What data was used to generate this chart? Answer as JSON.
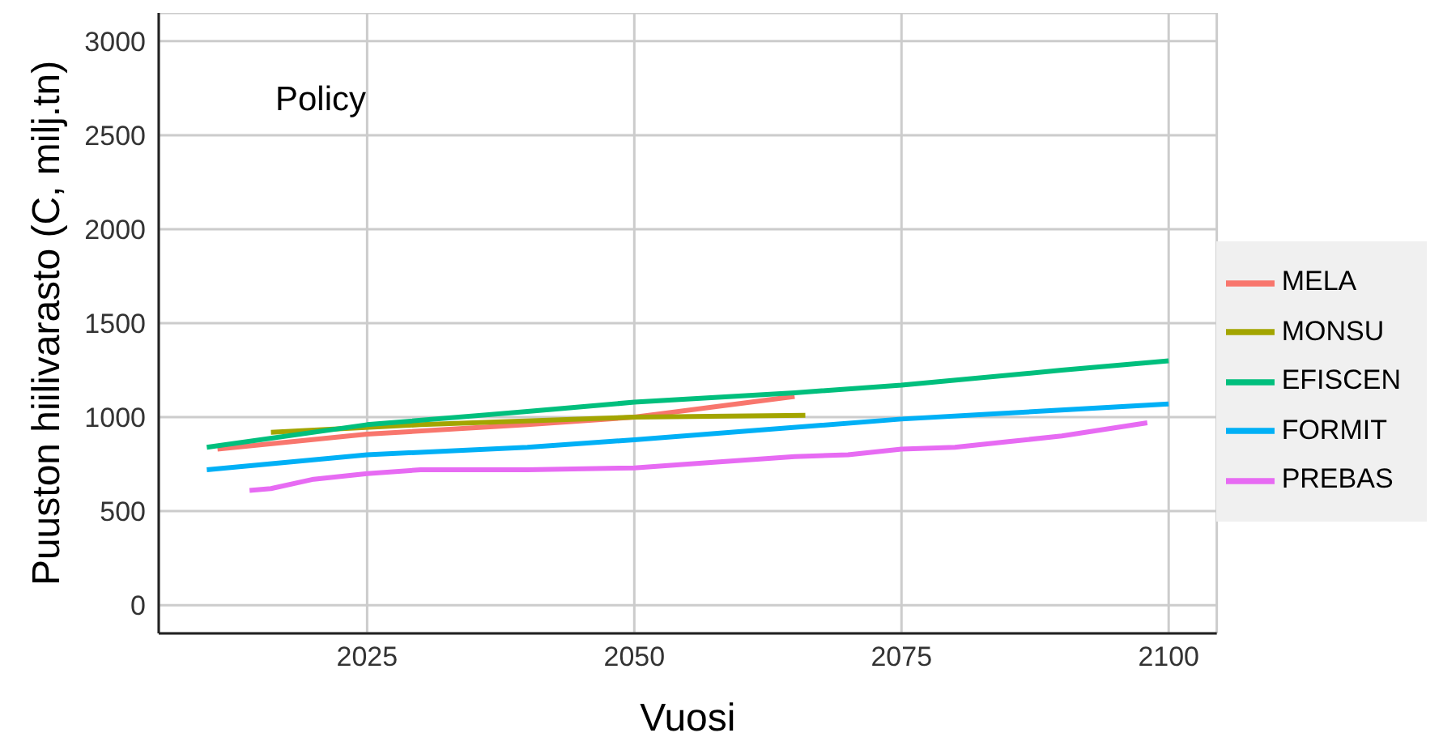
{
  "chart_data": {
    "type": "line",
    "xlabel": "Vuosi",
    "ylabel": "Puuston hiilivarasto (C, milj.tn)",
    "annotations": [
      "Policy"
    ],
    "xlim": [
      2005.5,
      2104.5
    ],
    "xticks": [
      2025,
      2050,
      2075,
      2100
    ],
    "ylim": [
      -150,
      3150
    ],
    "yticks": [
      0,
      500,
      1000,
      1500,
      2000,
      2500,
      3000
    ],
    "grid": true,
    "legend": "right",
    "line_style": "solid",
    "marker": "none",
    "series": [
      {
        "name": "MELA",
        "color": "#f8766d",
        "x": [
          2011,
          2025,
          2040,
          2050,
          2065
        ],
        "values": [
          830,
          910,
          960,
          1000,
          1110
        ]
      },
      {
        "name": "MONSU",
        "color": "#a3a500",
        "x": [
          2016,
          2030,
          2050,
          2066
        ],
        "values": [
          920,
          960,
          1000,
          1010
        ]
      },
      {
        "name": "EFISCEN",
        "color": "#00bf7d",
        "x": [
          2010,
          2025,
          2040,
          2050,
          2065,
          2075,
          2090,
          2100
        ],
        "values": [
          840,
          960,
          1030,
          1080,
          1130,
          1170,
          1250,
          1300
        ]
      },
      {
        "name": "FORMIT",
        "color": "#00b0f6",
        "x": [
          2010,
          2025,
          2040,
          2050,
          2075,
          2100
        ],
        "values": [
          720,
          800,
          840,
          880,
          990,
          1070
        ]
      },
      {
        "name": "PREBAS",
        "color": "#e76bf3",
        "x": [
          2014,
          2016,
          2020,
          2025,
          2030,
          2040,
          2050,
          2055,
          2065,
          2070,
          2075,
          2080,
          2085,
          2090,
          2098
        ],
        "values": [
          610,
          620,
          670,
          700,
          720,
          720,
          730,
          750,
          790,
          800,
          830,
          840,
          870,
          900,
          970
        ]
      }
    ]
  }
}
